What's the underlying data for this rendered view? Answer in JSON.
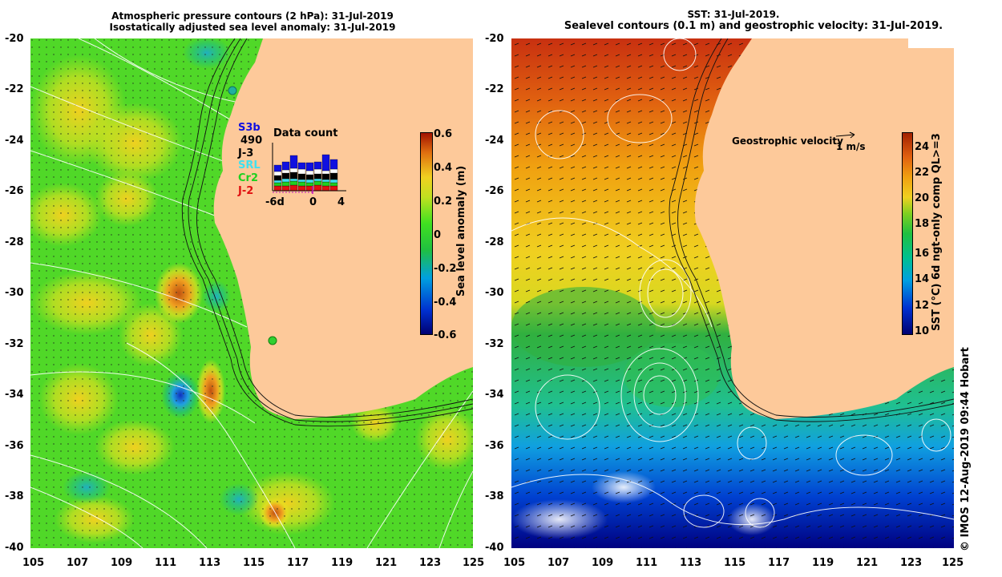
{
  "left_panel": {
    "title_line1": "Atmospheric pressure contours (2 hPa): 31-Jul-2019",
    "title_line2": "Isostatically adjusted sea level anomaly: 31-Jul-2019",
    "y_ticks": [
      "-20",
      "-22",
      "-24",
      "-26",
      "-28",
      "-30",
      "-32",
      "-34",
      "-36",
      "-38",
      "-40"
    ],
    "x_ticks": [
      "105",
      "107",
      "109",
      "111",
      "113",
      "115",
      "117",
      "119",
      "121",
      "123",
      "125"
    ],
    "colorbar": {
      "label": "Sea level anomaly (m)",
      "ticks": [
        "0.6",
        "0.4",
        "0.2",
        "0",
        "-0.2",
        "-0.4",
        "-0.6"
      ]
    },
    "satellites": [
      {
        "name": "S3b",
        "color": "#1010e0"
      },
      {
        "name": "490",
        "color": "#000000"
      },
      {
        "name": "J-3",
        "color": "#000000"
      },
      {
        "name": "SRL",
        "color": "#40e0f0"
      },
      {
        "name": "Cr2",
        "color": "#20d020"
      },
      {
        "name": "J-2",
        "color": "#e01010"
      }
    ],
    "data_count": {
      "title": "Data count",
      "x_ticks": [
        "-6d",
        "0",
        "4"
      ]
    }
  },
  "right_panel": {
    "title_line1": "SST: 31-Jul-2019.",
    "title_line2": "Sealevel contours (0.1 m) and geostrophic velocity: 31-Jul-2019.",
    "y_ticks": [
      "-20",
      "-22",
      "-24",
      "-26",
      "-28",
      "-30",
      "-32",
      "-34",
      "-36",
      "-38",
      "-40"
    ],
    "x_ticks": [
      "105",
      "107",
      "109",
      "111",
      "113",
      "115",
      "117",
      "119",
      "121",
      "123",
      "125"
    ],
    "velocity_legend": "Geostrophic velocity",
    "velocity_scale": "1 m/s",
    "colorbar": {
      "label": "SST (°C) 6d ngt-only comp QL>=3",
      "ticks": [
        "24",
        "22",
        "20",
        "18",
        "16",
        "14",
        "12",
        "10"
      ]
    }
  },
  "credit": "©  IMOS 12-Aug-2019 09:44 Hobart",
  "colors": {
    "land": "#fdc99a",
    "sla_ramp": [
      "#000070",
      "#0030d0",
      "#00a0e0",
      "#20c040",
      "#40e020",
      "#c0e020",
      "#f0d020",
      "#e07010",
      "#a01000"
    ],
    "sst_ramp": [
      "#000070",
      "#0030d0",
      "#00a0e0",
      "#00c090",
      "#20c040",
      "#80d020",
      "#f0d020",
      "#f0a010",
      "#e06010",
      "#a02000"
    ]
  }
}
